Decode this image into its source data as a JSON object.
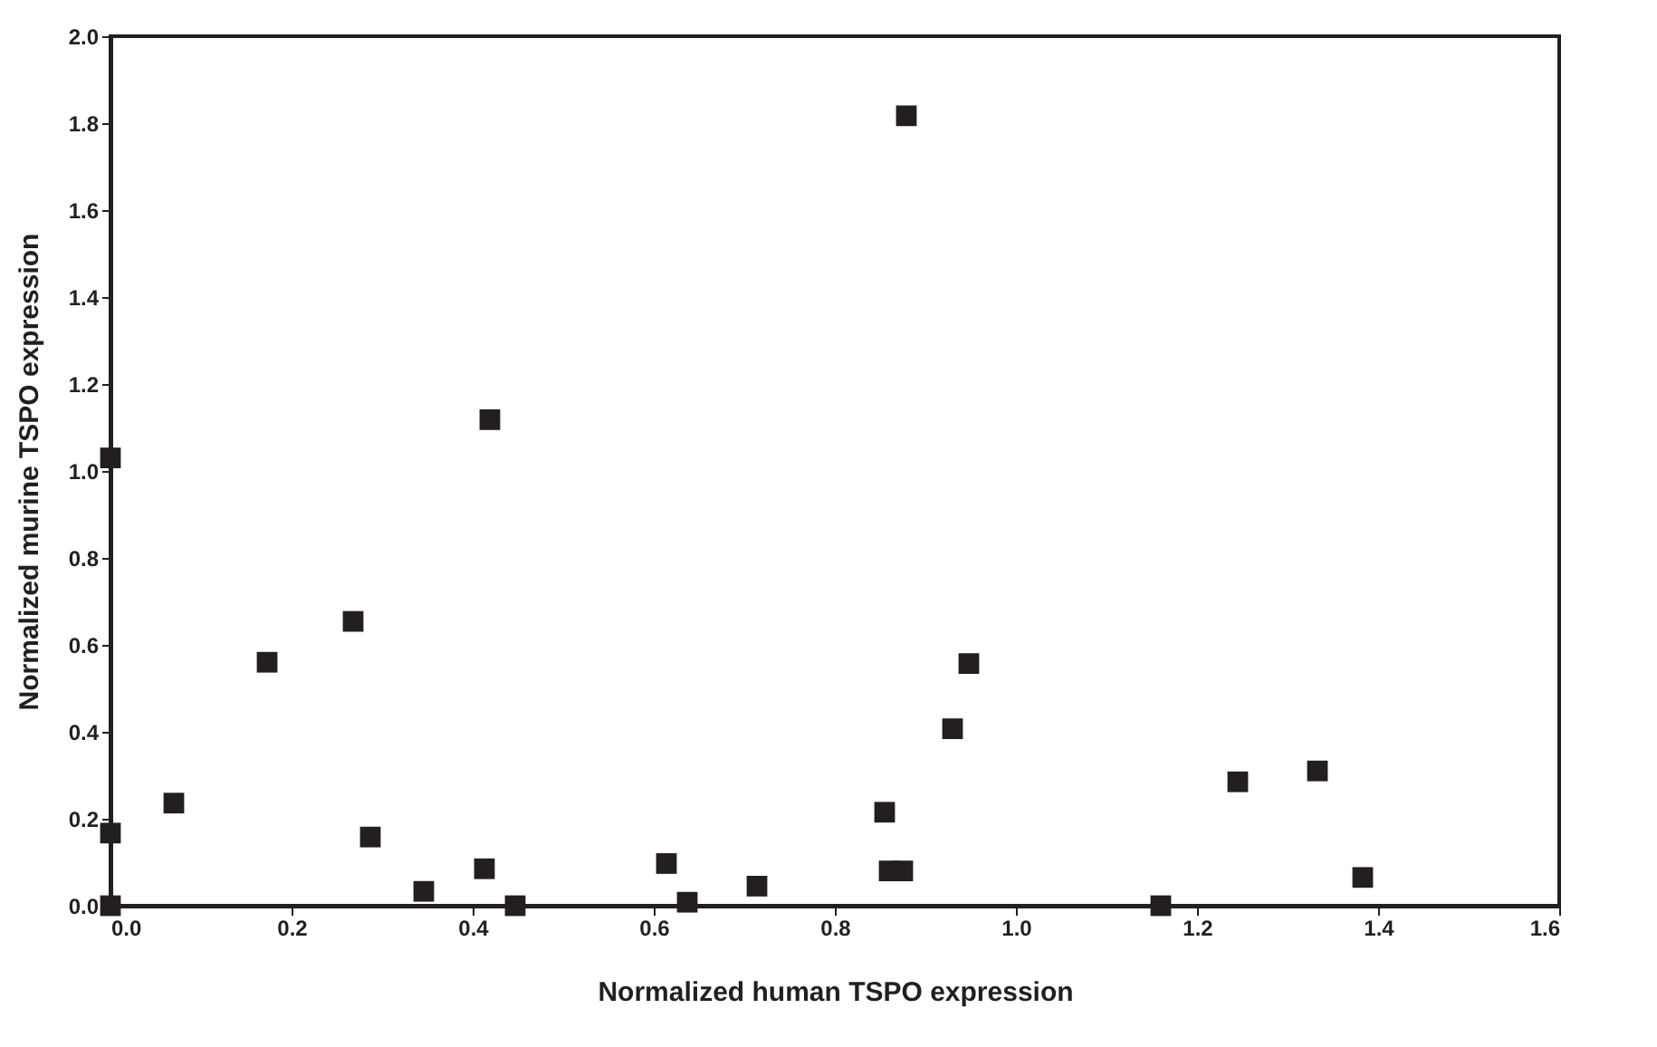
{
  "chart_data": {
    "type": "scatter",
    "xlabel": "Normalized human TSPO expression",
    "ylabel": "Normalized murine TSPO expression",
    "x": [
      0,
      0,
      0,
      0.07,
      0.173,
      0.268,
      0.287,
      0.346,
      0.413,
      0.419,
      0.447,
      0.614,
      0.637,
      0.714,
      0.855,
      0.86,
      0.875,
      0.879,
      0.93,
      0.948,
      1.16,
      1.245,
      1.333,
      1.383
    ],
    "series": [
      {
        "color": "#231f20",
        "values": [
          1.03,
          0.167,
          0,
          0.236,
          0.56,
          0.654,
          0.158,
          0.033,
          0.085,
          1.118,
          0,
          0.097,
          0.008,
          0.045,
          0.215,
          0.08,
          0.08,
          1.817,
          0.407,
          0.557,
          0,
          0.285,
          0.31,
          0.065
        ]
      }
    ],
    "xlim": [
      0,
      1.6
    ],
    "xticks": [
      {
        "value": 0,
        "label": "0.0"
      },
      0.2,
      0.4,
      0.6,
      0.8,
      {
        "value": 1,
        "label": "1.0"
      },
      1.2,
      1.4,
      1.6
    ],
    "ylim": [
      0,
      2
    ],
    "yticks": [
      {
        "value": 0,
        "label": "0.0"
      },
      0.2,
      0.4,
      0.6,
      0.8,
      {
        "value": 1,
        "label": "1.0"
      },
      1.2,
      1.4,
      1.6,
      1.8,
      {
        "value": 2,
        "label": "2.0"
      }
    ],
    "grid": false,
    "marker": "square"
  }
}
